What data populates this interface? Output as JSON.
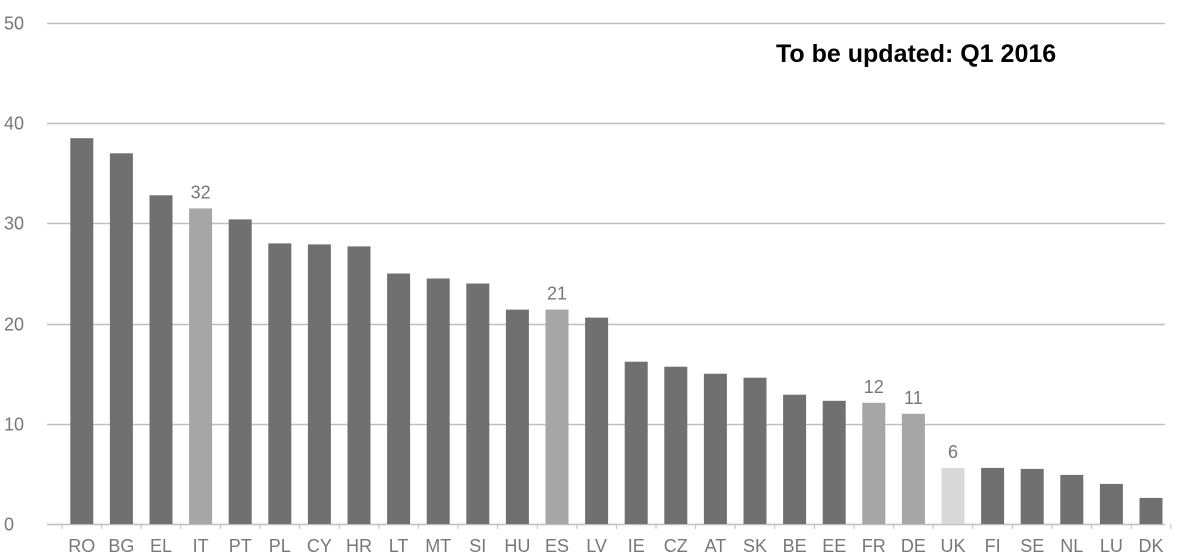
{
  "note": "To be updated: Q1 2016",
  "chart_data": {
    "type": "bar",
    "title": "",
    "xlabel": "",
    "ylabel": "",
    "ylim": [
      0,
      50
    ],
    "yticks": [
      0,
      10,
      20,
      30,
      40,
      50
    ],
    "grid": true,
    "categories": [
      "RO",
      "BG",
      "EL",
      "IT",
      "PT",
      "PL",
      "CY",
      "HR",
      "LT",
      "MT",
      "SI",
      "HU",
      "ES",
      "LV",
      "IE",
      "CZ",
      "AT",
      "SK",
      "BE",
      "EE",
      "FR",
      "DE",
      "UK",
      "FI",
      "SE",
      "NL",
      "LU",
      "DK"
    ],
    "values": [
      38.5,
      37.0,
      32.8,
      31.5,
      30.4,
      28.0,
      27.9,
      27.7,
      25.0,
      24.5,
      24.0,
      21.4,
      21.4,
      20.6,
      16.2,
      15.7,
      15.0,
      14.6,
      12.9,
      12.3,
      12.1,
      11.0,
      5.6,
      5.6,
      5.5,
      4.9,
      4.0,
      2.6
    ],
    "data_labels": {
      "IT": "32",
      "ES": "21",
      "FR": "12",
      "DE": "11",
      "UK": "6"
    },
    "colors": {
      "default": "#707070",
      "highlight": "#a6a6a6",
      "uk": "#d9d9d9",
      "grid": "#bfbfbf"
    },
    "highlight": [
      "IT",
      "ES",
      "FR",
      "DE"
    ],
    "light": [
      "UK"
    ]
  }
}
